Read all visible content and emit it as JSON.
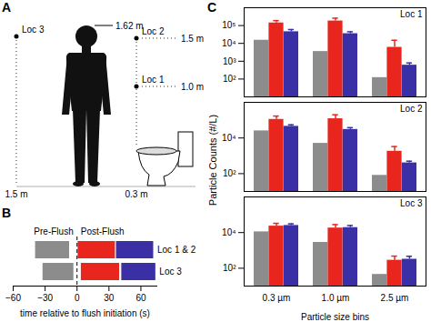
{
  "chart_data": [
    {
      "type": "bar",
      "title": "Loc 1",
      "annotations": [
        "C"
      ],
      "categories": [
        "0.3 µm",
        "1.0 µm",
        "2.5 µm"
      ],
      "series": [
        {
          "color": "#8c8c8c",
          "values": [
            15000,
            3500,
            120
          ]
        },
        {
          "color": "#e8261e",
          "values": [
            140000,
            180000,
            6000
          ],
          "errors": [
            50000,
            80000,
            9000
          ]
        },
        {
          "color": "#3b2fa6",
          "values": [
            45000,
            35000,
            600
          ],
          "errors": [
            15000,
            10000,
            200
          ]
        }
      ],
      "ylim": [
        10,
        1000000
      ],
      "yticks": [
        {
          "value": 100,
          "label": "10²"
        },
        {
          "value": 1000,
          "label": "10³"
        },
        {
          "value": 10000,
          "label": "10⁴"
        },
        {
          "value": 100000,
          "label": "10⁵"
        }
      ],
      "log": "y",
      "tick_labels": "y"
    },
    {
      "type": "bar",
      "title": "Loc 2",
      "ylabel": "Particle Counts (#/L)",
      "categories": [
        "0.3 µm",
        "1.0 µm",
        "2.5 µm"
      ],
      "series": [
        {
          "color": "#8c8c8c",
          "values": [
            25000,
            5000,
            80
          ]
        },
        {
          "color": "#e8261e",
          "values": [
            110000,
            120000,
            1800
          ],
          "errors": [
            60000,
            80000,
            1500
          ]
        },
        {
          "color": "#3b2fa6",
          "values": [
            45000,
            30000,
            400
          ],
          "errors": [
            10000,
            8000,
            100
          ]
        }
      ],
      "ylim": [
        10,
        1000000
      ],
      "yticks": [
        {
          "value": 100,
          "label": "10²"
        },
        {
          "value": 10000,
          "label": "10⁴"
        }
      ],
      "log": "y",
      "tick_labels": "y"
    },
    {
      "type": "bar",
      "title": "Loc 3",
      "xlabel": "Particle size bins",
      "categories": [
        "0.3 µm",
        "1.0 µm",
        "2.5 µm"
      ],
      "series": [
        {
          "color": "#8c8c8c",
          "values": [
            11000,
            2800,
            45
          ]
        },
        {
          "color": "#e8261e",
          "values": [
            23000,
            18000,
            280
          ],
          "errors": [
            10000,
            10000,
            200
          ]
        },
        {
          "color": "#3b2fa6",
          "values": [
            25000,
            19000,
            320
          ],
          "errors": [
            6000,
            6000,
            150
          ]
        }
      ],
      "ylim": [
        10,
        1000000
      ],
      "yticks": [
        {
          "value": 100,
          "label": "10²"
        },
        {
          "value": 10000,
          "label": "10⁴"
        }
      ],
      "log": "y"
    },
    {
      "type": "bar",
      "orientation": "horizontal",
      "annotations": [
        "B",
        "Pre-Flush",
        "Post-Flush"
      ],
      "categories": [
        "Loc 1 & 2",
        "Loc 3"
      ],
      "series": [
        {
          "color": "#8c8c8c",
          "values": [
            [
              -39,
              -7
            ],
            [
              -32,
              -3
            ]
          ]
        },
        {
          "color": "#e8261e",
          "values": [
            [
              1,
              36
            ],
            [
              4,
              40
            ]
          ]
        },
        {
          "color": "#3b2fa6",
          "values": [
            [
              37,
              72
            ],
            [
              42,
              74
            ]
          ]
        }
      ],
      "flush_time": 0,
      "xlabel": "time relative to flush initiation (s)",
      "xlim": [
        -60,
        75
      ],
      "xticks": [
        -60,
        -30,
        0,
        30,
        60
      ],
      "tick_labels": "x"
    }
  ],
  "diagram": {
    "label": "A",
    "locations": [
      {
        "label": "Loc 3"
      },
      {
        "label": "Loc 2"
      },
      {
        "label": "Loc 1"
      }
    ],
    "person_height": "1.62 m",
    "height_labels": [
      "1.5 m",
      "1.0 m"
    ],
    "distance_labels": [
      "1.5 m",
      "0.3 m"
    ]
  }
}
